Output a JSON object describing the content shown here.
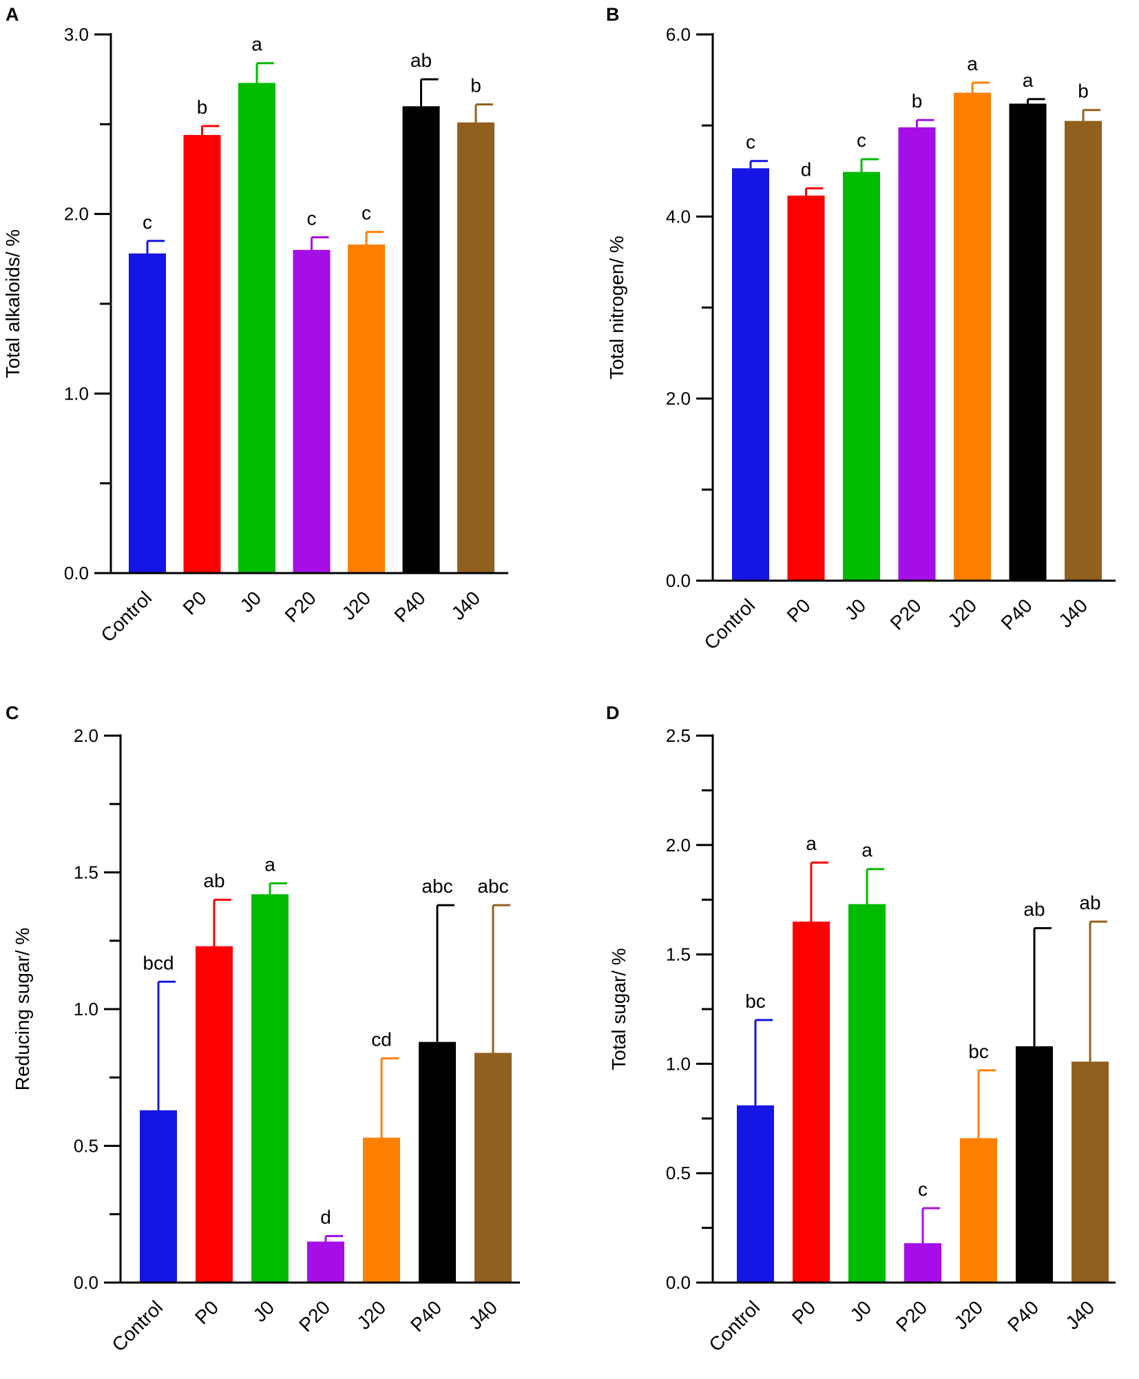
{
  "chart_data": [
    {
      "type": "bar",
      "panel": "A",
      "categories": [
        "Control",
        "P0",
        "J0",
        "P20",
        "J20",
        "P40",
        "J40"
      ],
      "values": [
        1.78,
        2.44,
        2.73,
        1.8,
        1.83,
        2.6,
        2.51
      ],
      "errors": [
        0.07,
        0.05,
        0.11,
        0.07,
        0.07,
        0.15,
        0.1
      ],
      "significance": [
        "c",
        "b",
        "a",
        "c",
        "c",
        "ab",
        "b"
      ],
      "colors": [
        "#1515e6",
        "#ff0000",
        "#00bb00",
        "#a50ee6",
        "#ff8000",
        "#000000",
        "#92601e"
      ],
      "ylabel": "Total alkaloids/ %",
      "ylim": [
        0,
        3
      ],
      "yticks": [
        0,
        1,
        2,
        3
      ],
      "ytick_labels": [
        "0.0",
        "1.0",
        "2.0",
        "3.0"
      ],
      "minor_step": 0.5
    },
    {
      "type": "bar",
      "panel": "B",
      "categories": [
        "Control",
        "P0",
        "J0",
        "P20",
        "J20",
        "P40",
        "J40"
      ],
      "values": [
        4.53,
        4.23,
        4.49,
        4.98,
        5.36,
        5.24,
        5.05
      ],
      "errors": [
        0.08,
        0.08,
        0.14,
        0.08,
        0.11,
        0.05,
        0.12
      ],
      "significance": [
        "c",
        "d",
        "c",
        "b",
        "a",
        "a",
        "b"
      ],
      "colors": [
        "#1515e6",
        "#ff0000",
        "#00bb00",
        "#a50ee6",
        "#ff8000",
        "#000000",
        "#92601e"
      ],
      "ylabel": "Total nitrogen/ %",
      "ylim": [
        0,
        6
      ],
      "yticks": [
        0,
        2,
        4,
        6
      ],
      "ytick_labels": [
        "0.0",
        "2.0",
        "4.0",
        "6.0"
      ],
      "minor_step": 1
    },
    {
      "type": "bar",
      "panel": "C",
      "categories": [
        "Control",
        "P0",
        "J0",
        "P20",
        "J20",
        "P40",
        "J40"
      ],
      "values": [
        0.63,
        1.23,
        1.42,
        0.15,
        0.53,
        0.88,
        0.84
      ],
      "errors": [
        0.47,
        0.17,
        0.04,
        0.02,
        0.29,
        0.5,
        0.54
      ],
      "significance": [
        "bcd",
        "ab",
        "a",
        "d",
        "cd",
        "abc",
        "abc"
      ],
      "colors": [
        "#1515e6",
        "#ff0000",
        "#00bb00",
        "#a50ee6",
        "#ff8000",
        "#000000",
        "#92601e"
      ],
      "ylabel": "Reducing sugar/ %",
      "ylim": [
        0,
        2
      ],
      "yticks": [
        0,
        0.5,
        1,
        1.5,
        2
      ],
      "ytick_labels": [
        "0.0",
        "0.5",
        "1.0",
        "1.5",
        "2.0"
      ],
      "minor_step": 0.25
    },
    {
      "type": "bar",
      "panel": "D",
      "categories": [
        "Control",
        "P0",
        "J0",
        "P20",
        "J20",
        "P40",
        "J40"
      ],
      "values": [
        0.81,
        1.65,
        1.73,
        0.18,
        0.66,
        1.08,
        1.01
      ],
      "errors": [
        0.39,
        0.27,
        0.16,
        0.16,
        0.31,
        0.54,
        0.64
      ],
      "significance": [
        "bc",
        "a",
        "a",
        "c",
        "bc",
        "ab",
        "ab"
      ],
      "colors": [
        "#1515e6",
        "#ff0000",
        "#00bb00",
        "#a50ee6",
        "#ff8000",
        "#000000",
        "#92601e"
      ],
      "ylabel": "Total sugar/ %",
      "ylim": [
        0,
        2.5
      ],
      "yticks": [
        0,
        0.5,
        1,
        1.5,
        2,
        2.5
      ],
      "ytick_labels": [
        "0.0",
        "0.5",
        "1.0",
        "1.5",
        "2.0",
        "2.5"
      ],
      "minor_step": 0.25
    }
  ]
}
